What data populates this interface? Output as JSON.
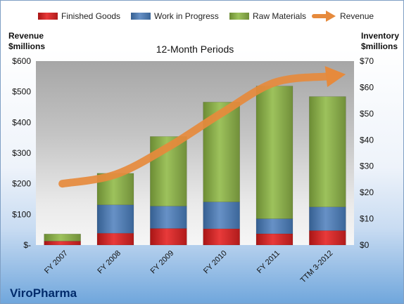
{
  "chart_data": {
    "type": "bar",
    "subtype": "stacked-bar-with-line",
    "title": "12-Month Periods",
    "company": "ViroPharma",
    "categories": [
      "FY 2007",
      "FY 2008",
      "FY 2009",
      "FY 2010",
      "FY 2011",
      "TTM 3-2012"
    ],
    "series": [
      {
        "name": "Finished Goods",
        "color": "#d92b2b",
        "axis": "right",
        "values": [
          1.5,
          4.5,
          6.3,
          6.2,
          4.3,
          5.5
        ]
      },
      {
        "name": "Work in Progress",
        "color": "#4f81bd",
        "axis": "right",
        "values": [
          0.0,
          10.8,
          8.5,
          10.2,
          5.7,
          9.0
        ]
      },
      {
        "name": "Raw Materials",
        "color": "#8bb14a",
        "axis": "right",
        "values": [
          2.7,
          12.0,
          26.5,
          38.0,
          50.5,
          42.0
        ]
      }
    ],
    "line_series": {
      "name": "Revenue",
      "color": "#e68a3c",
      "axis": "left",
      "values": [
        200,
        230,
        320,
        430,
        530,
        550
      ]
    },
    "left_axis": {
      "label_line1": "Revenue",
      "label_line2": "$millions",
      "ylim": [
        0,
        600
      ],
      "ticks": [
        600,
        500,
        400,
        300,
        200,
        100,
        0
      ],
      "tick_labels": [
        "$600",
        "$500",
        "$400",
        "$300",
        "$200",
        "$100",
        "$-"
      ]
    },
    "right_axis": {
      "label_line1": "Inventory",
      "label_line2": "$millions",
      "ylim": [
        0,
        70
      ],
      "ticks": [
        70,
        60,
        50,
        40,
        30,
        20,
        10,
        0
      ],
      "tick_labels": [
        "$70",
        "$60",
        "$50",
        "$40",
        "$30",
        "$20",
        "$10",
        "$0"
      ]
    },
    "legend_position": "top",
    "grid": false
  }
}
